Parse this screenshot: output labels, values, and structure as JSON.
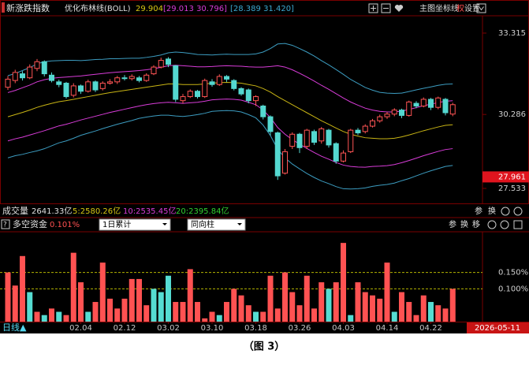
{
  "header": {
    "index_name": "新涨跌指数",
    "indicator": "优化布林线(BOLL)",
    "mid": "29.904",
    "inner": "[29.013 30.796]",
    "outer": "[28.389 31.420]",
    "tools": [
      "主图",
      "坐标线",
      "权",
      "设置"
    ]
  },
  "volume": {
    "label": "成交量",
    "total": "2641.33亿",
    "ma5": "5:2580.26亿",
    "ma10": "10:2535.45亿",
    "ma20": "20:2395.84亿",
    "tools": [
      "参",
      "换"
    ]
  },
  "panel2": {
    "help": "?",
    "label": "多空资金",
    "value": "0.101%",
    "mode": "1日累计",
    "style": "同向柱",
    "tools": [
      "参",
      "换",
      "移"
    ]
  },
  "footer": {
    "period": "日线▲",
    "current_date": "2026-05-11"
  },
  "caption": "（图 3）",
  "chart_data": [
    {
      "type": "candlestick",
      "up_color": "#ff5454",
      "down_color": "#54d8d0",
      "open": [
        31.3,
        31.55,
        31.8,
        31.65,
        32.0,
        32.25,
        31.75,
        31.5,
        31.45,
        31.0,
        31.35,
        31.15,
        31.5,
        31.25,
        31.45,
        31.5,
        31.65,
        31.62,
        31.65,
        31.55,
        31.8,
        32.05,
        32.35,
        32.1,
        30.8,
        30.95,
        31.15,
        30.95,
        31.5,
        31.4,
        31.7,
        31.55,
        31.25,
        31.2,
        30.8,
        30.6,
        30.2,
        29.6,
        28.1,
        29.1,
        29.55,
        29.1,
        29.65,
        29.3,
        29.7,
        29.2,
        28.55,
        28.9,
        29.7,
        29.65,
        29.85,
        30.05,
        30.2,
        30.3,
        30.45,
        30.25,
        30.7,
        30.6,
        30.85,
        30.55,
        30.85,
        30.3
      ],
      "high": [
        31.72,
        31.95,
        31.9,
        32.15,
        32.35,
        32.3,
        31.85,
        31.58,
        31.5,
        31.45,
        31.4,
        31.58,
        31.55,
        31.52,
        31.6,
        31.72,
        31.75,
        31.78,
        31.72,
        31.82,
        32.12,
        32.4,
        32.42,
        32.12,
        31.05,
        31.22,
        31.2,
        31.62,
        31.6,
        31.78,
        31.75,
        31.6,
        31.3,
        31.25,
        31.0,
        30.65,
        30.25,
        29.65,
        29.0,
        29.62,
        29.6,
        29.75,
        29.72,
        29.82,
        29.75,
        29.25,
        28.95,
        29.75,
        29.78,
        29.92,
        30.12,
        30.28,
        30.38,
        30.52,
        30.5,
        30.8,
        30.78,
        30.92,
        30.9,
        30.95,
        30.9,
        30.72
      ],
      "low": [
        31.2,
        31.45,
        31.55,
        31.6,
        31.9,
        31.7,
        31.48,
        31.3,
        30.88,
        30.92,
        31.05,
        31.1,
        31.12,
        31.18,
        31.4,
        31.42,
        31.55,
        31.55,
        31.48,
        31.5,
        31.75,
        32.0,
        32.05,
        30.75,
        30.7,
        30.9,
        30.88,
        30.9,
        31.32,
        31.35,
        31.5,
        31.18,
        30.98,
        30.7,
        30.6,
        30.1,
        29.5,
        27.85,
        28.05,
        29.0,
        28.85,
        29.0,
        29.15,
        29.2,
        29.05,
        28.45,
        28.5,
        28.85,
        29.52,
        29.58,
        29.8,
        29.98,
        30.12,
        30.22,
        30.15,
        30.2,
        30.52,
        30.55,
        30.45,
        30.48,
        30.25,
        30.22
      ],
      "close": [
        31.6,
        31.85,
        31.65,
        32.05,
        32.25,
        31.8,
        31.55,
        31.4,
        30.95,
        31.35,
        31.15,
        31.5,
        31.2,
        31.45,
        31.5,
        31.65,
        31.62,
        31.7,
        31.55,
        31.75,
        32.05,
        32.3,
        32.15,
        30.85,
        30.95,
        31.15,
        30.95,
        31.55,
        31.4,
        31.7,
        31.6,
        31.25,
        31.05,
        30.8,
        30.95,
        30.2,
        29.65,
        28.0,
        28.9,
        29.55,
        29.05,
        29.7,
        29.25,
        29.75,
        29.15,
        28.55,
        28.85,
        29.7,
        29.6,
        29.85,
        30.05,
        30.2,
        30.3,
        30.45,
        30.25,
        30.75,
        30.6,
        30.85,
        30.55,
        30.9,
        30.35,
        30.65
      ],
      "series": [
        {
          "color": "#3c9cc0",
          "values": [
            31.73,
            31.81,
            31.92,
            32.03,
            32.17,
            32.25,
            32.28,
            32.29,
            32.3,
            32.3,
            32.29,
            32.31,
            32.33,
            32.34,
            32.36,
            32.36,
            32.37,
            32.38,
            32.38,
            32.41,
            32.45,
            32.5,
            32.58,
            32.61,
            32.59,
            32.56,
            32.52,
            32.51,
            32.5,
            32.52,
            32.53,
            32.52,
            32.52,
            32.52,
            32.54,
            32.61,
            32.74,
            32.91,
            32.93,
            32.86,
            32.74,
            32.61,
            32.46,
            32.29,
            32.13,
            31.96,
            31.78,
            31.59,
            31.44,
            31.29,
            31.19,
            31.11,
            31.08,
            31.07,
            31.08,
            31.14,
            31.2,
            31.26,
            31.31,
            31.37,
            31.41,
            31.42
          ]
        },
        {
          "color": "#d83cd8",
          "values": [
            31.1,
            31.18,
            31.28,
            31.38,
            31.5,
            31.58,
            31.63,
            31.66,
            31.68,
            31.7,
            31.72,
            31.75,
            31.78,
            31.81,
            31.84,
            31.86,
            31.88,
            31.9,
            31.92,
            31.95,
            31.99,
            32.04,
            32.1,
            32.12,
            32.1,
            32.08,
            32.06,
            32.06,
            32.07,
            32.09,
            32.1,
            32.09,
            32.08,
            32.06,
            32.05,
            32.05,
            32.07,
            32.1,
            32.05,
            31.95,
            31.82,
            31.68,
            31.53,
            31.37,
            31.22,
            31.06,
            30.9,
            30.75,
            30.63,
            30.52,
            30.45,
            30.4,
            30.38,
            30.38,
            30.41,
            30.47,
            30.54,
            30.61,
            30.67,
            30.73,
            30.78,
            30.796
          ]
        },
        {
          "color": "#c8b414",
          "values": [
            30.2,
            30.28,
            30.36,
            30.45,
            30.55,
            30.63,
            30.7,
            30.76,
            30.8,
            30.85,
            30.9,
            30.95,
            31.0,
            31.05,
            31.1,
            31.14,
            31.18,
            31.22,
            31.26,
            31.3,
            31.34,
            31.38,
            31.42,
            31.42,
            31.4,
            31.4,
            31.4,
            31.42,
            31.45,
            31.47,
            31.48,
            31.47,
            31.45,
            31.4,
            31.35,
            31.25,
            31.12,
            30.95,
            30.8,
            30.65,
            30.5,
            30.35,
            30.2,
            30.05,
            29.92,
            29.78,
            29.65,
            29.55,
            29.48,
            29.42,
            29.4,
            29.38,
            29.38,
            29.4,
            29.45,
            29.52,
            29.6,
            29.68,
            29.75,
            29.82,
            29.88,
            29.904
          ]
        },
        {
          "color": "#d83cd8",
          "values": [
            29.3,
            29.38,
            29.44,
            29.52,
            29.6,
            29.68,
            29.77,
            29.86,
            29.92,
            30.0,
            30.08,
            30.15,
            30.22,
            30.29,
            30.36,
            30.42,
            30.48,
            30.54,
            30.6,
            30.65,
            30.69,
            30.72,
            30.74,
            30.72,
            30.7,
            30.72,
            30.74,
            30.78,
            30.83,
            30.85,
            30.86,
            30.85,
            30.82,
            30.74,
            30.65,
            30.45,
            30.17,
            29.8,
            29.55,
            29.35,
            29.18,
            29.02,
            28.87,
            28.73,
            28.62,
            28.5,
            28.4,
            28.35,
            28.33,
            28.32,
            28.35,
            28.36,
            28.38,
            28.42,
            28.49,
            28.57,
            28.66,
            28.75,
            28.83,
            28.91,
            28.98,
            29.013
          ]
        },
        {
          "color": "#3c9cc0",
          "values": [
            28.67,
            28.75,
            28.8,
            28.87,
            28.93,
            29.01,
            29.12,
            29.23,
            29.3,
            29.4,
            29.51,
            29.59,
            29.67,
            29.76,
            29.84,
            29.92,
            29.99,
            30.06,
            30.14,
            30.19,
            30.23,
            30.26,
            30.26,
            30.23,
            30.21,
            30.24,
            30.28,
            30.33,
            30.4,
            30.42,
            30.43,
            30.42,
            30.38,
            30.28,
            30.16,
            29.89,
            29.5,
            28.99,
            28.67,
            28.44,
            28.26,
            28.09,
            27.94,
            27.81,
            27.71,
            27.6,
            27.52,
            27.51,
            27.52,
            27.55,
            27.61,
            27.65,
            27.68,
            27.73,
            27.82,
            27.9,
            28.0,
            28.1,
            28.19,
            28.27,
            28.35,
            28.389
          ]
        }
      ],
      "ylim": [
        26.975,
        33.96
      ],
      "yticks": [
        33.315,
        30.286,
        27.533
      ],
      "last_value": 27.961,
      "last_color": "#e0141e"
    },
    {
      "type": "bar",
      "categories": [
        null,
        null,
        null,
        null,
        null,
        null,
        null,
        null,
        null,
        null,
        "02.04",
        null,
        null,
        null,
        null,
        null,
        "02.12",
        null,
        null,
        null,
        null,
        null,
        "03.02",
        null,
        null,
        null,
        null,
        null,
        "03.10",
        null,
        null,
        null,
        null,
        null,
        "03.18",
        null,
        null,
        null,
        null,
        null,
        "03.26",
        null,
        null,
        null,
        null,
        null,
        "04.03",
        null,
        null,
        null,
        null,
        null,
        "04.14",
        null,
        null,
        null,
        null,
        null,
        "04.22",
        null,
        null,
        null
      ],
      "values": [
        0.15,
        0.11,
        0.2,
        0.09,
        0.03,
        0.02,
        0.04,
        0.03,
        0.02,
        0.21,
        0.12,
        0.03,
        0.06,
        0.18,
        0.07,
        0.04,
        0.07,
        0.13,
        0.13,
        0.05,
        0.1,
        0.09,
        0.14,
        0.06,
        0.06,
        0.16,
        0.06,
        0.01,
        0.03,
        0.02,
        0.06,
        0.1,
        0.08,
        0.05,
        0.03,
        0.03,
        0.14,
        0.04,
        0.15,
        0.09,
        0.05,
        0.14,
        0.04,
        0.12,
        0.1,
        0.12,
        0.24,
        0.02,
        0.12,
        0.09,
        0.08,
        0.07,
        0.18,
        0.03,
        0.09,
        0.06,
        0.02,
        0.08,
        0.06,
        0.05,
        0.04,
        0.1
      ],
      "colors": [
        "#ff5252",
        "#ff5252",
        "#ff5252",
        "#55dcd2",
        "#ff5252",
        "#55dcd2",
        "#ff5252",
        "#55dcd2",
        "#ff5252",
        "#ff5252",
        "#ff5252",
        "#55dcd2",
        "#ff5252",
        "#ff5252",
        "#ff5252",
        "#ff5252",
        "#ff5252",
        "#ff5252",
        "#ff5252",
        "#ff5252",
        "#55dcd2",
        "#55dcd2",
        "#55dcd2",
        "#ff5252",
        "#ff5252",
        "#ff5252",
        "#ff5252",
        "#ff5252",
        "#ff5252",
        "#55dcd2",
        "#ff5252",
        "#ff5252",
        "#ff5252",
        "#ff5252",
        "#55dcd2",
        "#ff5252",
        "#ff5252",
        "#ff5252",
        "#ff5252",
        "#ff5252",
        "#ff5252",
        "#ff5252",
        "#ff5252",
        "#ff5252",
        "#55dcd2",
        "#ff5252",
        "#ff5252",
        "#55dcd2",
        "#ff5252",
        "#ff5252",
        "#ff5252",
        "#ff5252",
        "#ff5252",
        "#55dcd2",
        "#ff5252",
        "#ff5252",
        "#ff5252",
        "#ff5252",
        "#55dcd2",
        "#ff5252",
        "#ff5252",
        "#ff5252"
      ],
      "ylim": [
        0,
        0.274
      ],
      "yticks": [
        {
          "value": 0.15,
          "label": "0.150%"
        },
        {
          "value": 0.1,
          "label": "0.100%"
        }
      ],
      "grid": true,
      "grid_color": "#b4b400"
    }
  ]
}
